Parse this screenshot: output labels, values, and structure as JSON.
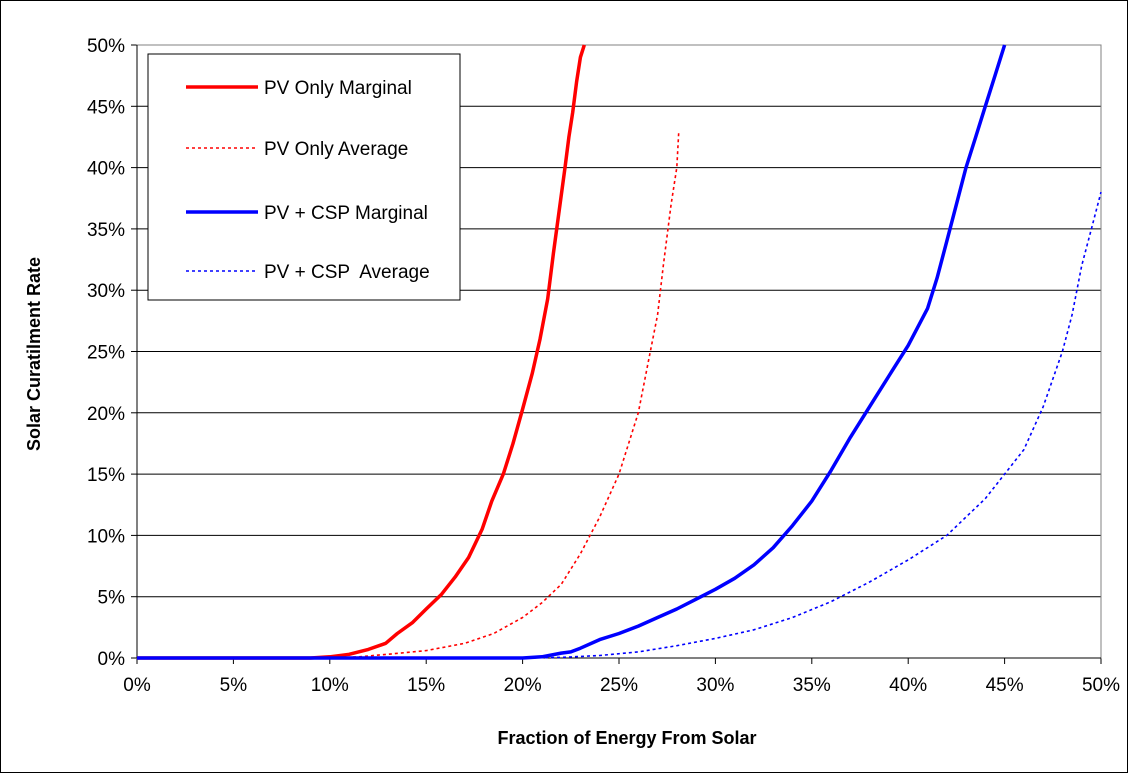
{
  "chart_data": {
    "type": "line",
    "title": "",
    "xlabel": "Fraction of Energy From Solar",
    "ylabel": "Solar Curatilment Rate",
    "xlim": [
      0,
      50
    ],
    "ylim": [
      0,
      50
    ],
    "x_ticks": [
      "0%",
      "5%",
      "10%",
      "15%",
      "20%",
      "25%",
      "30%",
      "35%",
      "40%",
      "45%",
      "50%"
    ],
    "y_ticks": [
      "0%",
      "5%",
      "10%",
      "15%",
      "20%",
      "25%",
      "30%",
      "35%",
      "40%",
      "45%",
      "50%"
    ],
    "grid": "horizontal",
    "legend_position": "top-left",
    "series": [
      {
        "name": "PV Only Marginal",
        "color": "#ff0000",
        "style": "solid",
        "points": [
          [
            0,
            0
          ],
          [
            5,
            0
          ],
          [
            9,
            0
          ],
          [
            10,
            0.1
          ],
          [
            11,
            0.3
          ],
          [
            12,
            0.7
          ],
          [
            12.9,
            1.2
          ],
          [
            13.5,
            2
          ],
          [
            14.3,
            2.9
          ],
          [
            15,
            4
          ],
          [
            15.8,
            5.2
          ],
          [
            16.5,
            6.6
          ],
          [
            17.2,
            8.2
          ],
          [
            17.9,
            10.5
          ],
          [
            18.4,
            12.8
          ],
          [
            19,
            15
          ],
          [
            19.5,
            17.5
          ],
          [
            20,
            20.3
          ],
          [
            20.5,
            23.2
          ],
          [
            20.9,
            26
          ],
          [
            21.3,
            29.3
          ],
          [
            21.6,
            33
          ],
          [
            21.9,
            36.5
          ],
          [
            22.2,
            40
          ],
          [
            22.4,
            42.5
          ],
          [
            22.6,
            44.5
          ],
          [
            22.8,
            47
          ],
          [
            23,
            49
          ],
          [
            23.2,
            50
          ]
        ]
      },
      {
        "name": "PV Only Average",
        "color": "#ff0000",
        "style": "dotted",
        "points": [
          [
            0,
            0
          ],
          [
            5,
            0
          ],
          [
            10,
            0
          ],
          [
            11.5,
            0.1
          ],
          [
            13,
            0.3
          ],
          [
            15,
            0.6
          ],
          [
            17,
            1.2
          ],
          [
            18.5,
            2
          ],
          [
            20,
            3.3
          ],
          [
            21,
            4.5
          ],
          [
            22,
            6
          ],
          [
            23,
            8.5
          ],
          [
            24,
            11.5
          ],
          [
            25,
            15
          ],
          [
            26,
            20
          ],
          [
            26.5,
            24
          ],
          [
            27,
            28
          ],
          [
            27.3,
            32
          ],
          [
            27.7,
            37
          ],
          [
            28,
            40
          ],
          [
            28.1,
            43
          ]
        ]
      },
      {
        "name": "PV + CSP Marginal",
        "color": "#0000ff",
        "style": "solid",
        "points": [
          [
            0,
            0
          ],
          [
            10,
            0
          ],
          [
            20,
            0
          ],
          [
            21,
            0.1
          ],
          [
            22,
            0.4
          ],
          [
            22.5,
            0.5
          ],
          [
            23,
            0.8
          ],
          [
            24,
            1.5
          ],
          [
            25,
            2
          ],
          [
            26,
            2.6
          ],
          [
            27,
            3.3
          ],
          [
            28,
            4
          ],
          [
            29,
            4.8
          ],
          [
            30,
            5.6
          ],
          [
            31,
            6.5
          ],
          [
            32,
            7.6
          ],
          [
            33,
            9
          ],
          [
            34,
            10.8
          ],
          [
            35,
            12.8
          ],
          [
            36,
            15.3
          ],
          [
            37,
            18
          ],
          [
            38,
            20.5
          ],
          [
            39,
            23
          ],
          [
            40,
            25.5
          ],
          [
            41,
            28.5
          ],
          [
            41.5,
            31
          ],
          [
            42,
            34
          ],
          [
            42.5,
            37
          ],
          [
            43,
            40
          ],
          [
            43.5,
            42.5
          ],
          [
            44,
            45
          ],
          [
            44.5,
            47.5
          ],
          [
            45,
            50
          ]
        ]
      },
      {
        "name": "PV + CSP  Average",
        "color": "#0000ff",
        "style": "dotted",
        "points": [
          [
            0,
            0
          ],
          [
            10,
            0
          ],
          [
            20,
            0
          ],
          [
            22,
            0.05
          ],
          [
            24,
            0.2
          ],
          [
            26,
            0.5
          ],
          [
            28,
            1
          ],
          [
            30,
            1.6
          ],
          [
            32,
            2.3
          ],
          [
            34,
            3.3
          ],
          [
            36,
            4.6
          ],
          [
            38,
            6.2
          ],
          [
            40,
            8
          ],
          [
            42,
            10
          ],
          [
            44,
            13
          ],
          [
            46,
            17
          ],
          [
            47,
            20.5
          ],
          [
            48,
            25
          ],
          [
            48.5,
            28
          ],
          [
            49,
            32
          ],
          [
            49.5,
            35
          ],
          [
            50,
            38
          ]
        ]
      }
    ]
  }
}
